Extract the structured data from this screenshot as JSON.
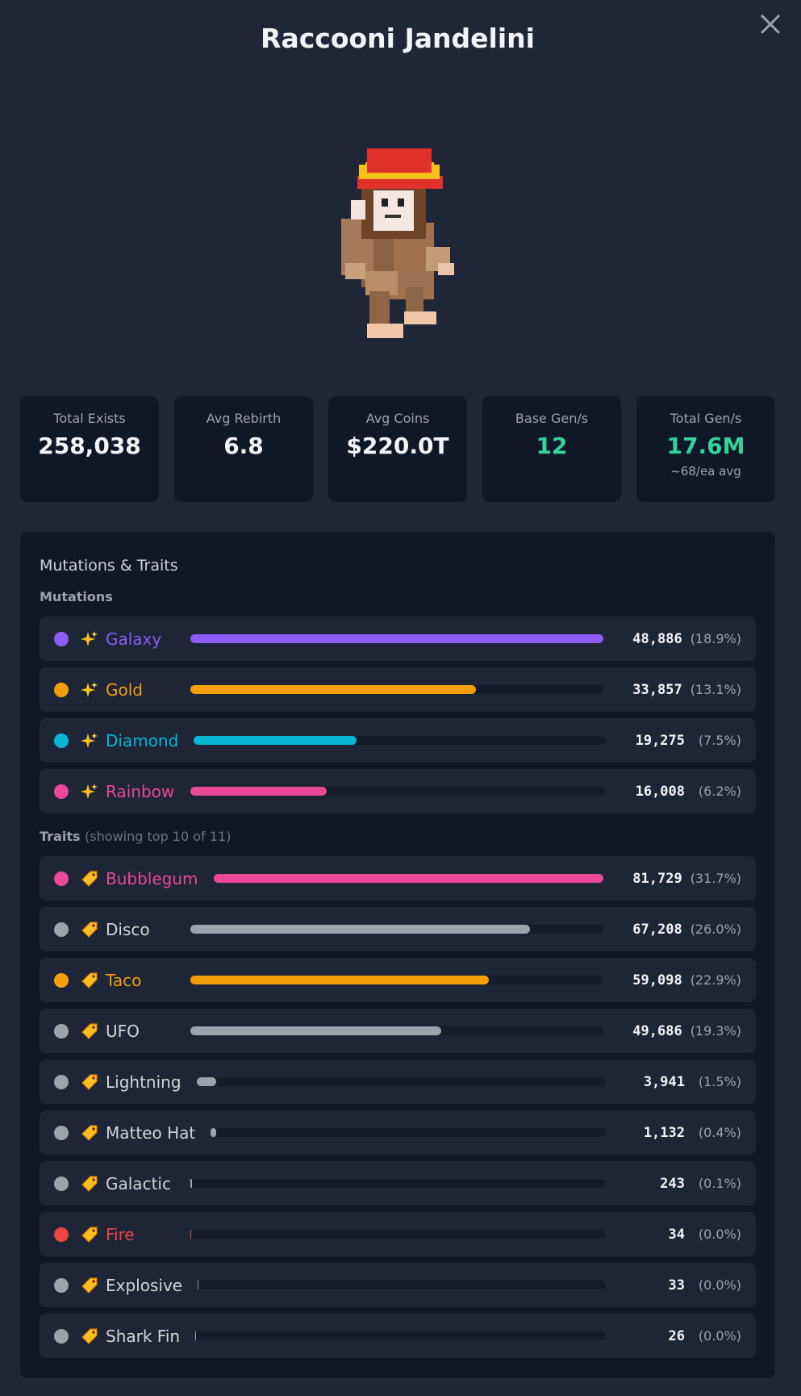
{
  "title": "Raccooni Jandelini",
  "stats": [
    {
      "label": "Total Exists",
      "value": "258,038"
    },
    {
      "label": "Avg Rebirth",
      "value": "6.8"
    },
    {
      "label": "Avg Coins",
      "value": "$220.0T"
    },
    {
      "label": "Base Gen/s",
      "value": "12",
      "color": "#34d399"
    },
    {
      "label": "Total Gen/s",
      "value": "17.6M",
      "color": "#34d399",
      "sub": "~68/ea avg"
    }
  ],
  "panel": {
    "title": "Mutations & Traits",
    "mutations": {
      "label": "Mutations",
      "icon": "sparkle",
      "items": [
        {
          "name": "Galaxy",
          "color": "#8b5cf6",
          "name_color": "#8b5cf6",
          "value": 48886,
          "label": "48,886",
          "percent": "(18.9%)"
        },
        {
          "name": "Gold",
          "color": "#f59e0b",
          "name_color": "#f59e0b",
          "value": 33857,
          "label": "33,857",
          "percent": "(13.1%)"
        },
        {
          "name": "Diamond",
          "color": "#06b6d4",
          "name_color": "#06b6d4",
          "value": 19275,
          "label": "19,275",
          "percent": "(7.5%)"
        },
        {
          "name": "Rainbow",
          "color": "#ec4899",
          "name_color": "#ec4899",
          "value": 16008,
          "label": "16,008",
          "percent": "(6.2%)"
        }
      ]
    },
    "traits": {
      "label": "Traits",
      "note": "(showing top 10 of 11)",
      "icon": "tag",
      "items": [
        {
          "name": "Bubblegum",
          "color": "#ec4899",
          "name_color": "#ec4899",
          "value": 81729,
          "label": "81,729",
          "percent": "(31.7%)"
        },
        {
          "name": "Disco",
          "color": "#9ca3af",
          "name_color": "#d1d5db",
          "value": 67208,
          "label": "67,208",
          "percent": "(26.0%)"
        },
        {
          "name": "Taco",
          "color": "#f59e0b",
          "name_color": "#f59e0b",
          "value": 59098,
          "label": "59,098",
          "percent": "(22.9%)"
        },
        {
          "name": "UFO",
          "color": "#9ca3af",
          "name_color": "#d1d5db",
          "value": 49686,
          "label": "49,686",
          "percent": "(19.3%)"
        },
        {
          "name": "Lightning",
          "color": "#9ca3af",
          "name_color": "#d1d5db",
          "value": 3941,
          "label": "3,941",
          "percent": "(1.5%)"
        },
        {
          "name": "Matteo Hat",
          "color": "#9ca3af",
          "name_color": "#d1d5db",
          "value": 1132,
          "label": "1,132",
          "percent": "(0.4%)"
        },
        {
          "name": "Galactic",
          "color": "#9ca3af",
          "name_color": "#d1d5db",
          "value": 243,
          "label": "243",
          "percent": "(0.1%)"
        },
        {
          "name": "Fire",
          "color": "#ef4444",
          "name_color": "#ef4444",
          "value": 34,
          "label": "34",
          "percent": "(0.0%)"
        },
        {
          "name": "Explosive",
          "color": "#9ca3af",
          "name_color": "#d1d5db",
          "value": 33,
          "label": "33",
          "percent": "(0.0%)"
        },
        {
          "name": "Shark Fin",
          "color": "#9ca3af",
          "name_color": "#d1d5db",
          "value": 26,
          "label": "26",
          "percent": "(0.0%)"
        }
      ]
    }
  }
}
